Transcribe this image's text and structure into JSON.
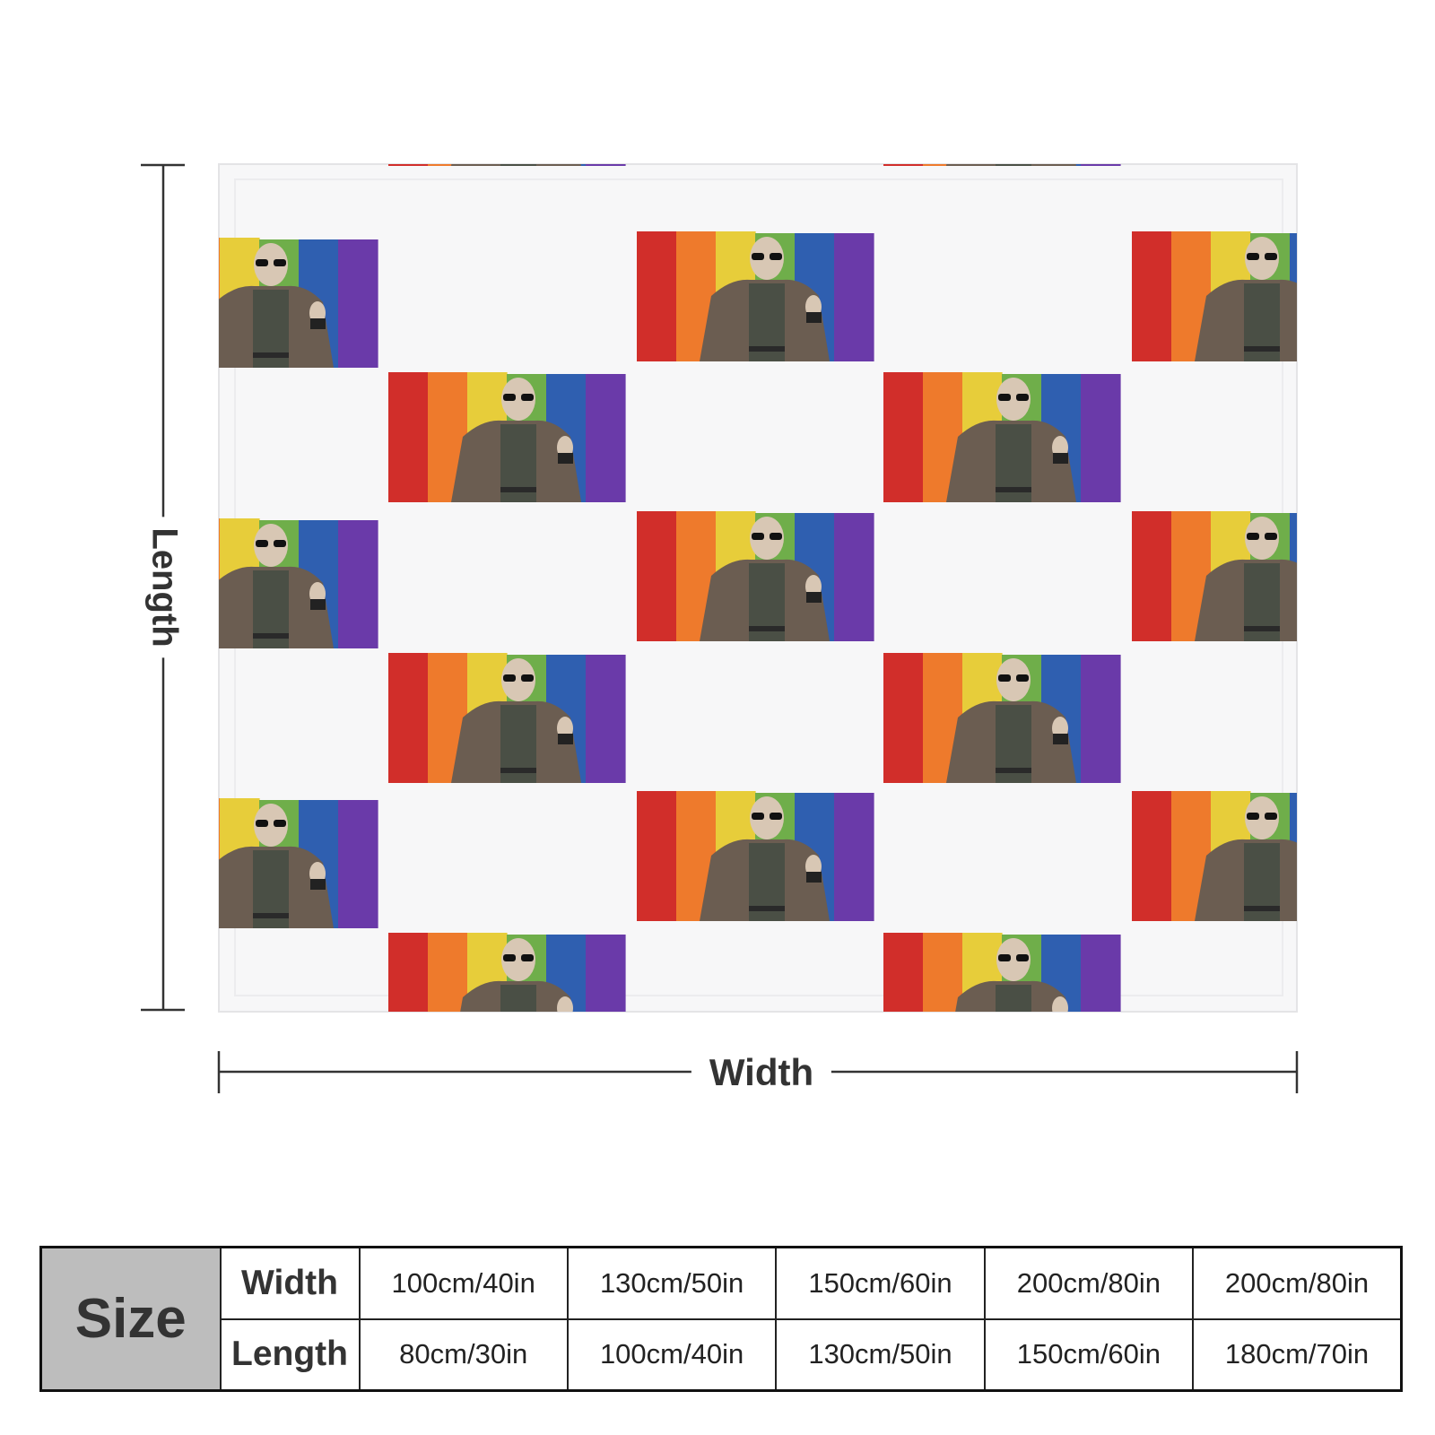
{
  "dimension_labels": {
    "length": "Length",
    "width": "Width"
  },
  "size_table": {
    "size_label": "Size",
    "row_labels": {
      "width": "Width",
      "length": "Length"
    },
    "widths": [
      "100cm/40in",
      "130cm/50in",
      "150cm/60in",
      "200cm/80in",
      "200cm/80in"
    ],
    "lengths": [
      "80cm/30in",
      "100cm/40in",
      "130cm/50in",
      "150cm/60in",
      "180cm/70in"
    ]
  },
  "colors": {
    "rainbow": [
      "#d12e2a",
      "#ee7a2c",
      "#e7cd3a",
      "#6fae4a",
      "#2f5fb0",
      "#6a3aa9"
    ],
    "figure_coat": "#6b5d51",
    "figure_shirt": "#4a4f45",
    "skin": "#d8c7b4"
  }
}
